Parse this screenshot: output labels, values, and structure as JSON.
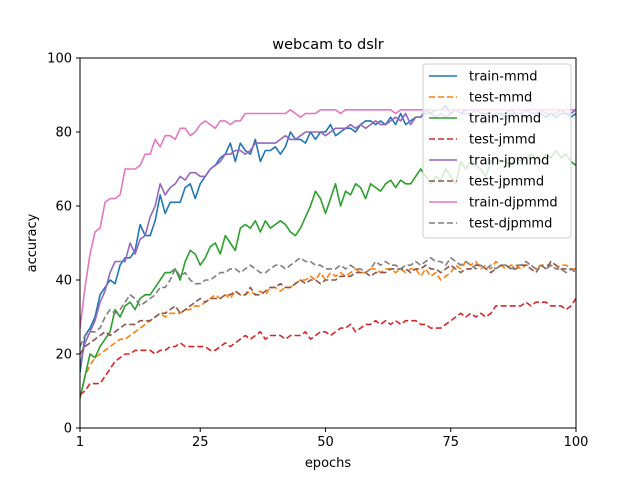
{
  "chart_data": {
    "type": "line",
    "title": "webcam to dslr",
    "xlabel": "epochs",
    "ylabel": "accuracy",
    "xlim": [
      1,
      100
    ],
    "ylim": [
      0,
      100
    ],
    "xticks": [
      1,
      25,
      50,
      75,
      100
    ],
    "yticks": [
      0,
      20,
      40,
      60,
      80,
      100
    ],
    "grid": false,
    "legend_position": "top-right",
    "series": [
      {
        "name": "train-mmd",
        "color": "#1f77b4",
        "dash": "solid",
        "values": [
          15,
          25,
          27,
          30,
          36,
          38,
          40,
          39,
          44,
          46,
          46,
          48,
          55,
          52,
          52,
          56,
          63,
          58,
          61,
          61,
          61,
          65,
          66,
          62,
          66,
          68,
          70,
          71,
          73,
          74,
          77,
          72,
          77,
          75,
          74,
          78,
          72,
          75,
          75,
          76,
          74,
          76,
          80,
          78,
          78,
          77,
          80,
          78,
          80,
          80,
          82,
          79,
          80,
          81,
          81,
          80,
          82,
          83,
          83,
          82,
          83,
          82,
          84,
          82,
          85,
          82,
          83,
          84,
          84,
          86,
          85,
          86,
          86,
          87,
          85,
          86,
          85,
          86,
          86,
          86,
          85,
          85,
          84,
          85,
          85,
          84,
          85,
          85,
          85,
          84,
          85,
          85,
          85,
          84,
          85,
          84,
          85,
          85,
          84,
          85
        ]
      },
      {
        "name": "test-mmd",
        "color": "#ff7f0e",
        "dash": "dashed",
        "values": [
          8,
          14,
          17,
          19,
          20,
          21,
          22,
          23,
          24,
          24,
          25,
          26,
          27,
          28,
          29,
          30,
          31,
          30,
          31,
          31,
          31,
          32,
          32,
          33,
          33,
          34,
          35,
          36,
          35,
          36,
          35,
          37,
          36,
          36,
          37,
          36,
          37,
          36,
          38,
          38,
          37,
          38,
          38,
          39,
          40,
          40,
          41,
          40,
          42,
          40,
          42,
          41,
          42,
          41,
          42,
          43,
          42,
          42,
          43,
          43,
          42,
          43,
          43,
          42,
          43,
          42,
          43,
          43,
          41,
          43,
          41,
          42,
          40,
          41,
          42,
          44,
          43,
          45,
          44,
          45,
          43,
          44,
          43,
          45,
          44,
          43,
          44,
          44,
          43,
          44,
          44,
          43,
          44,
          44,
          44,
          43,
          44,
          44,
          43,
          43
        ]
      },
      {
        "name": "train-jmmd",
        "color": "#2ca02c",
        "dash": "solid",
        "values": [
          8,
          14,
          20,
          19,
          22,
          24,
          26,
          32,
          30,
          33,
          34,
          32,
          35,
          36,
          36,
          38,
          40,
          42,
          42,
          43,
          40,
          45,
          48,
          47,
          44,
          46,
          49,
          50,
          47,
          52,
          50,
          48,
          54,
          55,
          54,
          56,
          53,
          56,
          54,
          55,
          56,
          55,
          53,
          52,
          54,
          57,
          60,
          64,
          62,
          58,
          62,
          66,
          60,
          64,
          63,
          66,
          65,
          62,
          66,
          65,
          64,
          66,
          67,
          65,
          67,
          66,
          66,
          68,
          70,
          68,
          66,
          68,
          67,
          70,
          68,
          66,
          72,
          70,
          72,
          71,
          70,
          68,
          72,
          73,
          72,
          72,
          71,
          73,
          72,
          73,
          74,
          73,
          72,
          74,
          73,
          75,
          73,
          74,
          72,
          71
        ]
      },
      {
        "name": "test-jmmd",
        "color": "#d62728",
        "dash": "dashed",
        "values": [
          9,
          10,
          12,
          12,
          12,
          14,
          16,
          18,
          19,
          20,
          20,
          21,
          21,
          21,
          21,
          20,
          21,
          21,
          22,
          22,
          23,
          22,
          22,
          22,
          22,
          22,
          21,
          21,
          22,
          23,
          22,
          23,
          24,
          25,
          24,
          25,
          26,
          24,
          25,
          25,
          25,
          24,
          25,
          25,
          25,
          26,
          24,
          25,
          26,
          26,
          25,
          26,
          27,
          27,
          28,
          26,
          27,
          28,
          28,
          29,
          28,
          29,
          28,
          29,
          28,
          29,
          29,
          29,
          28,
          28,
          27,
          27,
          27,
          28,
          29,
          30,
          31,
          30,
          31,
          30,
          31,
          30,
          31,
          33,
          33,
          33,
          33,
          33,
          33,
          34,
          33,
          34,
          34,
          34,
          33,
          33,
          33,
          32,
          33,
          35
        ]
      },
      {
        "name": "train-jpmmd",
        "color": "#9467bd",
        "dash": "solid",
        "values": [
          17,
          23,
          26,
          29,
          34,
          37,
          42,
          45,
          45,
          45,
          50,
          47,
          51,
          52,
          57,
          60,
          66,
          63,
          65,
          66,
          68,
          67,
          69,
          69,
          68,
          68,
          70,
          71,
          72,
          74,
          74,
          75,
          75,
          74,
          75,
          77,
          77,
          77,
          77,
          77,
          78,
          79,
          78,
          78,
          79,
          80,
          80,
          80,
          80,
          79,
          80,
          81,
          81,
          81,
          82,
          81,
          82,
          81,
          82,
          83,
          82,
          82,
          83,
          84,
          83,
          85,
          82,
          84,
          84,
          85,
          85,
          84,
          85,
          84,
          85,
          86,
          85,
          85,
          85,
          86,
          85,
          85,
          85,
          84,
          85,
          85,
          86,
          85,
          85,
          86,
          85,
          85,
          86,
          85,
          85,
          85,
          86,
          85,
          85,
          86
        ]
      },
      {
        "name": "test-jpmmd",
        "color": "#8c564b",
        "dash": "dashed",
        "values": [
          20,
          22,
          23,
          24,
          25,
          26,
          25,
          26,
          27,
          28,
          28,
          28,
          29,
          29,
          29,
          30,
          31,
          31,
          32,
          33,
          31,
          32,
          33,
          34,
          35,
          34,
          35,
          35,
          35,
          36,
          36,
          37,
          36,
          36,
          38,
          36,
          36,
          37,
          38,
          38,
          39,
          38,
          38,
          39,
          40,
          39,
          40,
          40,
          39,
          40,
          40,
          40,
          41,
          41,
          41,
          42,
          42,
          42,
          41,
          42,
          42,
          42,
          43,
          43,
          43,
          43,
          42,
          43,
          43,
          44,
          43,
          43,
          42,
          43,
          44,
          43,
          42,
          43,
          43,
          44,
          44,
          43,
          42,
          43,
          44,
          44,
          43,
          43,
          44,
          44,
          43,
          42,
          44,
          43,
          45,
          44,
          43,
          43,
          43,
          42
        ]
      },
      {
        "name": "train-djpmmd",
        "color": "#e377c2",
        "dash": "solid",
        "values": [
          27,
          38,
          47,
          53,
          54,
          61,
          62,
          62,
          63,
          70,
          70,
          70,
          71,
          74,
          74,
          78,
          76,
          79,
          79,
          78,
          81,
          81,
          79,
          80,
          82,
          83,
          82,
          81,
          83,
          83,
          82,
          83,
          83,
          85,
          85,
          85,
          85,
          85,
          85,
          85,
          85,
          85,
          86,
          85,
          84,
          85,
          85,
          85,
          86,
          86,
          86,
          86,
          85,
          86,
          86,
          86,
          86,
          86,
          86,
          86,
          86,
          86,
          86,
          85,
          86,
          86,
          86,
          86,
          86,
          86,
          86,
          86,
          86,
          86,
          86,
          86,
          86,
          86,
          86,
          86,
          86,
          86,
          86,
          86,
          86,
          86,
          86,
          86,
          86,
          86,
          86,
          86,
          86,
          86,
          86,
          86,
          86,
          86,
          86,
          86
        ]
      },
      {
        "name": "test-djpmmd",
        "color": "#7f7f7f",
        "dash": "dashed",
        "values": [
          22,
          25,
          26,
          26,
          27,
          30,
          32,
          31,
          32,
          34,
          36,
          35,
          33,
          34,
          35,
          36,
          38,
          38,
          40,
          43,
          41,
          42,
          40,
          39,
          39,
          40,
          40,
          41,
          42,
          42,
          43,
          43,
          42,
          43,
          44,
          43,
          42,
          42,
          43,
          44,
          44,
          43,
          44,
          45,
          46,
          45,
          45,
          44,
          44,
          43,
          43,
          43,
          44,
          43,
          44,
          43,
          43,
          42,
          43,
          45,
          44,
          45,
          44,
          44,
          43,
          44,
          44,
          45,
          44,
          45,
          46,
          45,
          45,
          44,
          46,
          45,
          44,
          45,
          44,
          43,
          44,
          43,
          44,
          43,
          44,
          44,
          43,
          44,
          44,
          45,
          44,
          43,
          44,
          43,
          44,
          43,
          43,
          42,
          43,
          42
        ]
      }
    ]
  }
}
